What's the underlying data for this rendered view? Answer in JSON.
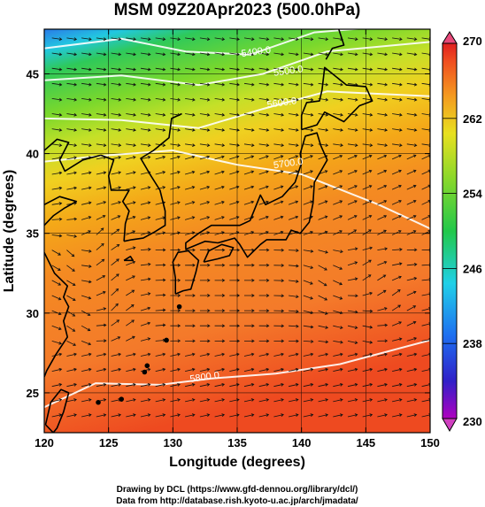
{
  "chart_data": {
    "type": "heatmap",
    "title": "MSM 09Z20Apr2023 (500.0hPa)",
    "xlabel": "Longitude (degrees)",
    "ylabel": "Latitude  (degrees)",
    "xlim": [
      120,
      150
    ],
    "ylim": [
      22.5,
      47.8
    ],
    "x_ticks": [
      120,
      125,
      130,
      135,
      140,
      145,
      150
    ],
    "y_ticks": [
      25,
      30,
      35,
      40,
      45
    ],
    "colorbar": {
      "min": 230,
      "max": 270,
      "ticks": [
        230,
        238,
        246,
        254,
        262,
        270
      ]
    },
    "contour_labels": [
      {
        "text": "5400.0",
        "lon": 136.5,
        "lat": 46.2
      },
      {
        "text": "5500.0",
        "lon": 139.0,
        "lat": 45.0
      },
      {
        "text": "5600.0",
        "lon": 138.5,
        "lat": 43.0
      },
      {
        "text": "5700.0",
        "lon": 139.0,
        "lat": 39.2
      },
      {
        "text": "5800.0",
        "lon": 132.5,
        "lat": 25.8
      }
    ],
    "credits": [
      "Drawing by DCL (https://www.gfd-dennou.org/library/dcl/)",
      "Data from http://database.rish.kyoto-u.ac.jp/arch/jmadata/"
    ]
  }
}
